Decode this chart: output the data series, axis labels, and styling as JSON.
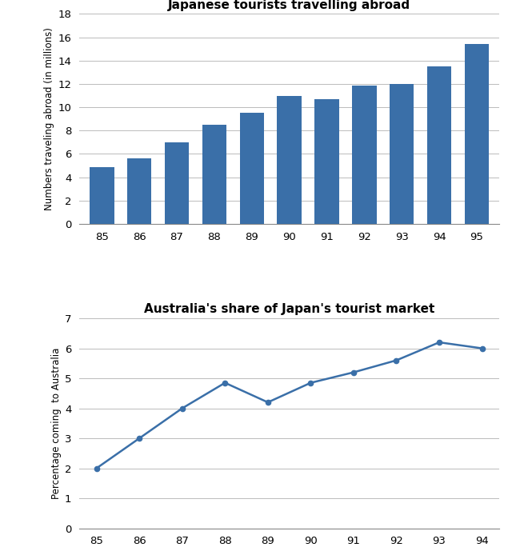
{
  "bar_years": [
    "85",
    "86",
    "87",
    "88",
    "89",
    "90",
    "91",
    "92",
    "93",
    "94",
    "95"
  ],
  "bar_values": [
    4.9,
    5.6,
    7.0,
    8.5,
    9.5,
    11.0,
    10.7,
    11.85,
    12.0,
    13.5,
    15.4
  ],
  "bar_color": "#3A6FA8",
  "bar_title": "Japanese tourists travelling abroad",
  "bar_ylabel": "Numbers traveling abroad (in millions)",
  "bar_ylim": [
    0,
    18
  ],
  "bar_yticks": [
    0,
    2,
    4,
    6,
    8,
    10,
    12,
    14,
    16,
    18
  ],
  "line_years": [
    "85",
    "86",
    "87",
    "88",
    "89",
    "90",
    "91",
    "92",
    "93",
    "94"
  ],
  "line_values": [
    2.0,
    3.0,
    4.0,
    4.85,
    4.2,
    4.85,
    5.2,
    5.6,
    6.2,
    6.0
  ],
  "line_color": "#3A6FA8",
  "line_title": "Australia's share of Japan's tourist market",
  "line_ylabel": "Percentage coming  to Australia",
  "line_ylim": [
    0,
    7
  ],
  "line_yticks": [
    0,
    1,
    2,
    3,
    4,
    5,
    6,
    7
  ],
  "background_color": "#ffffff",
  "grid_color": "#bbbbbb",
  "font_color": "#000000"
}
